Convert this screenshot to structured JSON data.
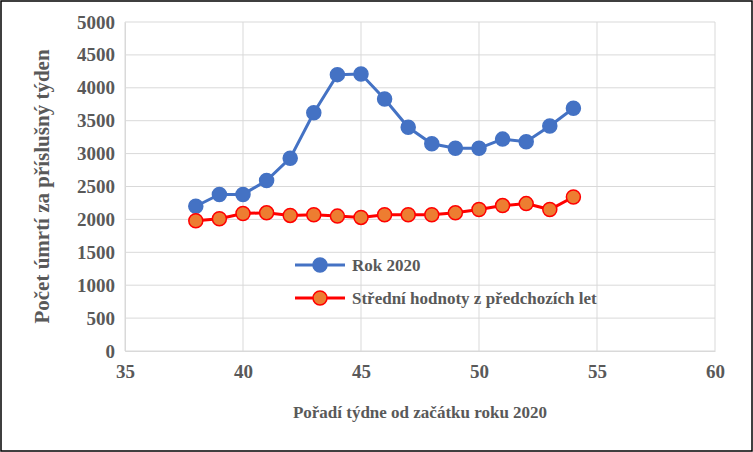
{
  "chart_data": {
    "type": "line",
    "x_label": "Pořadí týdne od začátku roku 2020",
    "y_label": "Počet úmrtí za příslušný týden",
    "x": [
      38,
      39,
      40,
      41,
      42,
      43,
      44,
      45,
      46,
      47,
      48,
      49,
      50,
      51,
      52,
      53,
      54
    ],
    "series": [
      {
        "name": "Rok 2020",
        "color": "#4472c4",
        "marker": "circle",
        "values": [
          2200,
          2380,
          2380,
          2590,
          2930,
          3620,
          4200,
          4210,
          3830,
          3400,
          3150,
          3080,
          3080,
          3220,
          3180,
          3420,
          3690
        ]
      },
      {
        "name": "Střední hodnoty z předchozích let",
        "color": "#ff0000",
        "marker": "circle",
        "values": [
          1980,
          2010,
          2090,
          2100,
          2060,
          2070,
          2050,
          2030,
          2070,
          2070,
          2070,
          2100,
          2150,
          2210,
          2240,
          2150,
          2340
        ]
      }
    ],
    "xlim": [
      35,
      60
    ],
    "xticks": [
      35,
      40,
      45,
      50,
      55,
      60
    ],
    "ylim": [
      0,
      5000
    ],
    "yticks": [
      0,
      500,
      1000,
      1500,
      2000,
      2500,
      3000,
      3500,
      4000,
      4500,
      5000
    ],
    "grid": true,
    "legend": "center"
  }
}
